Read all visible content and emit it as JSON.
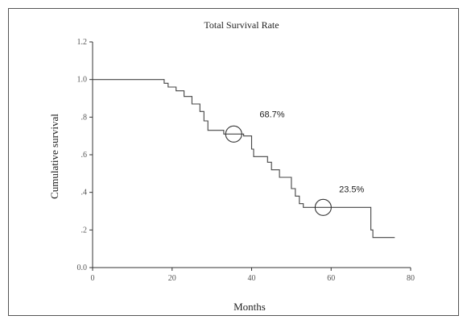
{
  "chart_data": {
    "type": "line",
    "title": "Total Survival Rate",
    "xlabel": "Months",
    "ylabel": "Cumulative survival",
    "xlim": [
      0,
      80
    ],
    "ylim": [
      0,
      1.2
    ],
    "x_ticks": [
      0,
      20,
      40,
      60,
      80
    ],
    "x_tick_labels": [
      "0",
      "20",
      "40",
      "60",
      "80"
    ],
    "y_ticks": [
      0,
      0.2,
      0.4,
      0.6,
      0.8,
      1.0,
      1.2
    ],
    "y_tick_labels": [
      "0.0",
      ".2",
      ".4",
      ".6",
      ".8",
      "1.0",
      "1.2"
    ],
    "grid": false,
    "series": [
      {
        "points": [
          [
            0,
            1.0
          ],
          [
            18,
            1.0
          ],
          [
            18,
            0.98
          ],
          [
            19,
            0.98
          ],
          [
            19,
            0.96
          ],
          [
            21,
            0.96
          ],
          [
            21,
            0.94
          ],
          [
            23,
            0.94
          ],
          [
            23,
            0.91
          ],
          [
            25,
            0.91
          ],
          [
            25,
            0.87
          ],
          [
            27,
            0.87
          ],
          [
            27,
            0.83
          ],
          [
            28,
            0.83
          ],
          [
            28,
            0.78
          ],
          [
            29,
            0.78
          ],
          [
            29,
            0.73
          ],
          [
            33,
            0.73
          ],
          [
            33,
            0.71
          ],
          [
            38,
            0.71
          ],
          [
            38,
            0.7
          ],
          [
            40,
            0.7
          ],
          [
            40,
            0.63
          ],
          [
            40.5,
            0.63
          ],
          [
            40.5,
            0.59
          ],
          [
            44,
            0.59
          ],
          [
            44,
            0.56
          ],
          [
            45,
            0.56
          ],
          [
            45,
            0.52
          ],
          [
            47,
            0.52
          ],
          [
            47,
            0.48
          ],
          [
            50,
            0.48
          ],
          [
            50,
            0.42
          ],
          [
            51,
            0.42
          ],
          [
            51,
            0.38
          ],
          [
            52,
            0.38
          ],
          [
            52,
            0.34
          ],
          [
            53,
            0.34
          ],
          [
            53,
            0.32
          ],
          [
            70,
            0.32
          ],
          [
            70,
            0.2
          ],
          [
            70.5,
            0.2
          ],
          [
            70.5,
            0.16
          ],
          [
            76,
            0.16
          ]
        ]
      }
    ],
    "markers": [
      {
        "x": 35.5,
        "y": 0.71
      },
      {
        "x": 58,
        "y": 0.32
      }
    ],
    "annotations": [
      {
        "text": "68.7%",
        "x": 42,
        "y": 0.8
      },
      {
        "text": "23.5%",
        "x": 62,
        "y": 0.4
      }
    ]
  }
}
